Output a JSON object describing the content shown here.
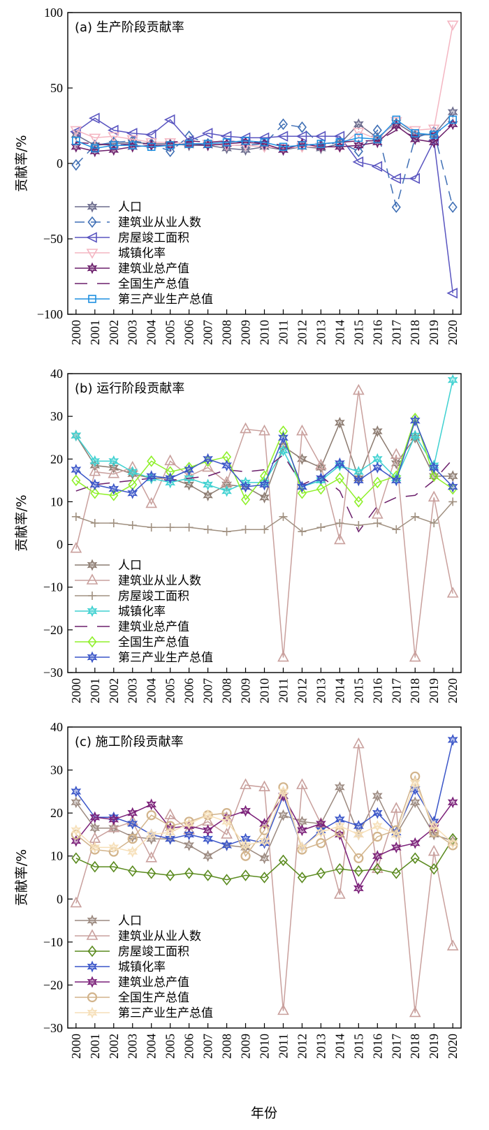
{
  "figure": {
    "x_title": "年份"
  },
  "chart_data": [
    {
      "type": "line",
      "title": "(a) 生产阶段贡献率",
      "ylabel": "贡献率/%",
      "xlabel": "",
      "ylim": [
        -100,
        100
      ],
      "yticks": [
        -100,
        -50,
        0,
        50,
        100
      ],
      "grid": false,
      "legend": "bottom-left",
      "categories": [
        "2000",
        "2001",
        "2002",
        "2003",
        "2004",
        "2005",
        "2006",
        "2007",
        "2008",
        "2009",
        "2010",
        "2011",
        "2012",
        "2013",
        "2014",
        "2015",
        "2016",
        "2017",
        "2018",
        "2019",
        "2020"
      ],
      "series": [
        {
          "name": "人口",
          "color": "#6b6b8c",
          "dash": "solid",
          "marker": "star6",
          "values": [
            19,
            12,
            13,
            14,
            13,
            13,
            12,
            12,
            10,
            9,
            11,
            9,
            11,
            10,
            13,
            26,
            17,
            27,
            19,
            19,
            34
          ]
        },
        {
          "name": "建筑业从业人数",
          "color": "#3f6fb5",
          "dash": "dash",
          "marker": "diamond",
          "values": [
            -1,
            12,
            14,
            15,
            13,
            8,
            18,
            13,
            12,
            12,
            13,
            26,
            24,
            12,
            14,
            8,
            22,
            -29,
            17,
            21,
            -29
          ]
        },
        {
          "name": "房屋竣工面积",
          "color": "#5a55c0",
          "dash": "solid",
          "marker": "triangle-left",
          "values": [
            21,
            30,
            22,
            20,
            19,
            29,
            15,
            20,
            18,
            17,
            17,
            18,
            18,
            18,
            18,
            1,
            -2,
            -10,
            -10,
            15,
            -86
          ]
        },
        {
          "name": "城镇化率",
          "color": "#f4b6c2",
          "dash": "solid",
          "marker": "triangle-down",
          "values": [
            22,
            17,
            18,
            16,
            14,
            14,
            13,
            13,
            12,
            12,
            11,
            10,
            11,
            11,
            11,
            21,
            16,
            28,
            22,
            23,
            92
          ]
        },
        {
          "name": "建筑业总产值",
          "color": "#6b1f6b",
          "dash": "solid",
          "marker": "star6",
          "values": [
            11,
            8,
            9,
            11,
            12,
            12,
            13,
            12,
            13,
            14,
            13,
            9,
            13,
            11,
            11,
            12,
            14,
            25,
            16,
            14,
            26
          ]
        },
        {
          "name": "全国生产总值",
          "color": "#6b1f6b",
          "dash": "dash-long",
          "marker": "none",
          "values": [
            14,
            13,
            12,
            13,
            13,
            14,
            15,
            14,
            15,
            14,
            14,
            12,
            12,
            13,
            14,
            15,
            15,
            22,
            18,
            20,
            26
          ]
        },
        {
          "name": "第三产业生产总值",
          "color": "#1e8fe0",
          "dash": "solid",
          "marker": "square",
          "values": [
            15,
            10,
            12,
            12,
            11,
            12,
            13,
            13,
            14,
            15,
            14,
            11,
            12,
            13,
            14,
            17,
            16,
            29,
            20,
            19,
            29
          ]
        }
      ]
    },
    {
      "type": "line",
      "title": "(b) 运行阶段贡献率",
      "ylabel": "贡献率/%",
      "xlabel": "",
      "ylim": [
        -30,
        40
      ],
      "yticks": [
        -30,
        -20,
        -10,
        0,
        10,
        20,
        30,
        40
      ],
      "grid": false,
      "legend": "bottom-left",
      "categories": [
        "2000",
        "2001",
        "2002",
        "2003",
        "2004",
        "2005",
        "2006",
        "2007",
        "2008",
        "2009",
        "2010",
        "2011",
        "2012",
        "2013",
        "2014",
        "2015",
        "2016",
        "2017",
        "2018",
        "2019",
        "2020"
      ],
      "series": [
        {
          "name": "人口",
          "color": "#8c7b70",
          "dash": "solid",
          "marker": "star6",
          "values": [
            25.5,
            18.5,
            18,
            16.5,
            15.5,
            15.5,
            14,
            11.5,
            14,
            13.5,
            11,
            23,
            20,
            18,
            28.5,
            15.5,
            26.5,
            19,
            25,
            16,
            16
          ]
        },
        {
          "name": "建筑业从业人数",
          "color": "#c9a09d",
          "dash": "solid",
          "marker": "triangle-up",
          "values": [
            -1,
            17,
            16.5,
            18,
            9.5,
            19.5,
            16,
            18,
            14.5,
            27,
            26.5,
            -26.5,
            26.5,
            18.5,
            1,
            36,
            7,
            21,
            -26.5,
            11,
            -11.5
          ]
        },
        {
          "name": "房屋竣工面积",
          "color": "#a09080",
          "dash": "solid",
          "marker": "plus",
          "values": [
            6.5,
            5,
            5,
            4.5,
            4,
            4,
            4,
            3.5,
            3,
            3.5,
            3.5,
            6.5,
            3,
            4,
            5,
            4.5,
            5,
            3.5,
            6.5,
            5,
            10
          ]
        },
        {
          "name": "城镇化率",
          "color": "#3fd1d1",
          "dash": "solid",
          "marker": "star6",
          "values": [
            25.5,
            19.5,
            19.5,
            17,
            15.5,
            14.5,
            15.5,
            14,
            12.5,
            14.5,
            14.5,
            22,
            13.5,
            15,
            18.5,
            17,
            20,
            15.5,
            25.5,
            18.5,
            38.5
          ]
        },
        {
          "name": "建筑业总产值",
          "color": "#6b1f6b",
          "dash": "dash-long",
          "marker": "none",
          "values": [
            12.5,
            14,
            14.5,
            15,
            15.5,
            15,
            15.5,
            16,
            17.5,
            17,
            17.5,
            21,
            14,
            16,
            12.5,
            3,
            9,
            11,
            11.5,
            15,
            20
          ]
        },
        {
          "name": "全国生产总值",
          "color": "#8ff02a",
          "dash": "solid",
          "marker": "diamond",
          "values": [
            15,
            12,
            11.5,
            14,
            19.5,
            17,
            18,
            19.5,
            20.5,
            10.5,
            16,
            26.5,
            12,
            13,
            15.5,
            10,
            14.5,
            16,
            29.5,
            16,
            13
          ]
        },
        {
          "name": "第三产业生产总值",
          "color": "#3a55c8",
          "dash": "solid",
          "marker": "star6",
          "values": [
            17.5,
            14,
            13,
            12,
            16,
            15.5,
            17.5,
            20,
            18.5,
            13.5,
            14,
            25,
            13.5,
            15.5,
            19,
            15,
            18,
            15,
            29,
            18,
            13.5
          ]
        }
      ]
    },
    {
      "type": "line",
      "title": "(c) 施工阶段贡献率",
      "ylabel": "贡献率/%",
      "xlabel": "",
      "ylim": [
        -30,
        40
      ],
      "yticks": [
        -30,
        -20,
        -10,
        0,
        10,
        20,
        30,
        40
      ],
      "grid": false,
      "legend": "bottom-left",
      "categories": [
        "2000",
        "2001",
        "2002",
        "2003",
        "2004",
        "2005",
        "2006",
        "2007",
        "2008",
        "2009",
        "2010",
        "2011",
        "2012",
        "2013",
        "2014",
        "2015",
        "2016",
        "2017",
        "2018",
        "2019",
        "2020"
      ],
      "series": [
        {
          "name": "人口",
          "color": "#9c8a80",
          "dash": "solid",
          "marker": "star6",
          "values": [
            22.5,
            16.5,
            16.5,
            14.5,
            14,
            14,
            12.5,
            10,
            12.5,
            12,
            9.5,
            19.5,
            18,
            17.5,
            26,
            15,
            24,
            15,
            22.5,
            15,
            13.5
          ]
        },
        {
          "name": "建筑业从业人数",
          "color": "#c9a09d",
          "dash": "solid",
          "marker": "triangle-up",
          "values": [
            -1,
            14,
            16.5,
            18,
            9.5,
            19.5,
            16,
            18,
            15,
            26.5,
            26,
            -26,
            26.5,
            17.5,
            1,
            36,
            7,
            21,
            -26.5,
            11,
            -11
          ]
        },
        {
          "name": "房屋竣工面积",
          "color": "#5a8a1e",
          "dash": "solid",
          "marker": "diamond",
          "values": [
            9.5,
            7.5,
            7.5,
            6.5,
            6,
            5.5,
            6,
            5.5,
            4.5,
            5.5,
            5,
            9,
            5,
            6,
            7,
            6.5,
            7,
            6,
            9.5,
            7,
            14
          ]
        },
        {
          "name": "城镇化率",
          "color": "#3a55c8",
          "dash": "solid",
          "marker": "star6",
          "values": [
            25,
            19,
            19,
            17.5,
            15,
            14,
            15,
            14,
            12.5,
            14,
            13,
            24,
            12,
            16,
            18.5,
            17,
            20,
            15.5,
            25.5,
            18,
            37
          ]
        },
        {
          "name": "建筑业总产值",
          "color": "#7a1f78",
          "dash": "solid",
          "marker": "star6",
          "values": [
            13.5,
            19,
            18.5,
            20,
            22,
            16.5,
            17,
            16,
            19,
            20.5,
            17.5,
            24,
            16,
            17.5,
            15,
            2.5,
            10,
            12,
            13,
            16.5,
            22.5
          ]
        },
        {
          "name": "全国生产总值",
          "color": "#d2b48c",
          "dash": "solid",
          "marker": "circle",
          "values": [
            15,
            11.5,
            11,
            14,
            19.5,
            17,
            18,
            19.5,
            20,
            10,
            16,
            26,
            11.5,
            13,
            15.5,
            9.5,
            14.5,
            16,
            28.5,
            15.5,
            12.5
          ]
        },
        {
          "name": "第三产业生产总值",
          "color": "#f6dfb8",
          "dash": "solid",
          "marker": "star6",
          "values": [
            16,
            12,
            12,
            11,
            15,
            15.5,
            17.5,
            19.5,
            18,
            12.5,
            13.5,
            25,
            12,
            15.5,
            17,
            15,
            17,
            15,
            27,
            17,
            13
          ]
        }
      ]
    }
  ]
}
